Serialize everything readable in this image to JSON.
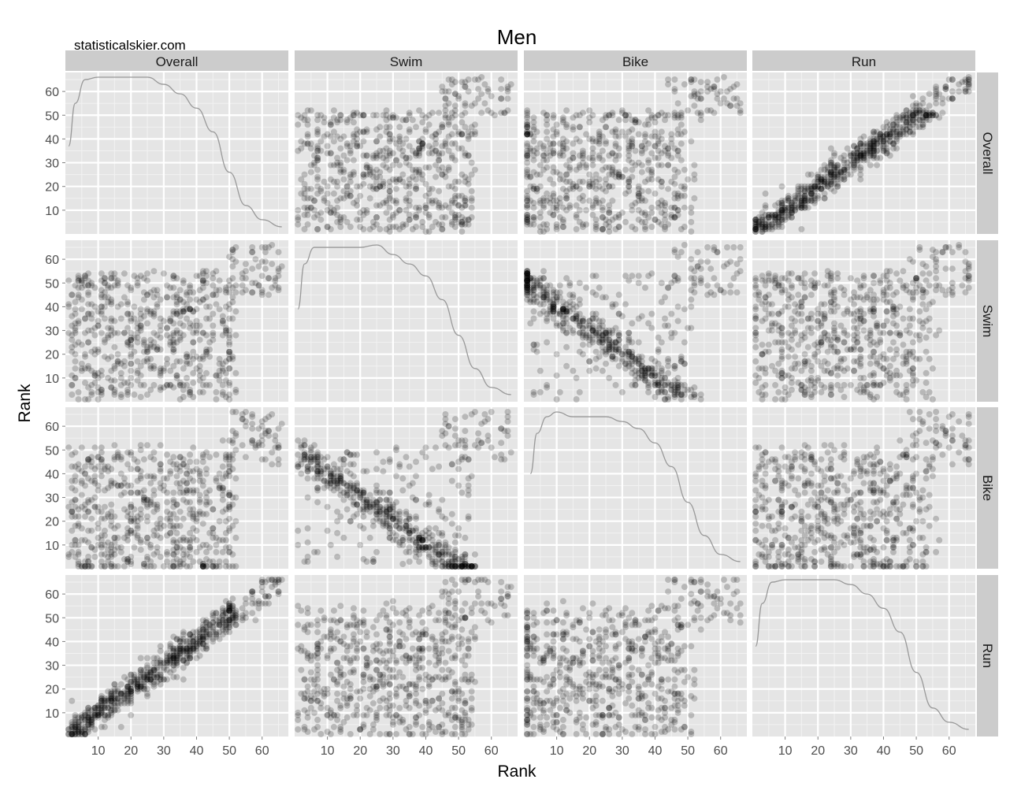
{
  "title": "Men",
  "watermark": "statisticalskier.com",
  "chart_data": {
    "type": "scatter",
    "layout": "scatterplot-matrix",
    "variables": [
      "Overall",
      "Swim",
      "Bike",
      "Run"
    ],
    "xlabel": "Rank",
    "ylabel": "Rank",
    "xlim": [
      0,
      68
    ],
    "ylim": [
      0,
      68
    ],
    "x_ticks": [
      10,
      20,
      30,
      40,
      50,
      60
    ],
    "y_ticks": [
      10,
      20,
      30,
      40,
      50,
      60
    ],
    "n_points": 650,
    "point_alpha": 0.2,
    "grid": true,
    "diagonal": "density",
    "pair_patterns": {
      "Overall|Swim": "weak positive, ranks diverge for mid-pack; tight diagonal tail above rank 50",
      "Overall|Bike": "weak positive with diagonal band and tail above rank 45",
      "Overall|Run": "strong positive linear, points tightly along diagonal",
      "Swim|Bike": "strong negative band from (2,48) to (52,2), plus positive tail above rank 45",
      "Swim|Run": "weak positive scatter",
      "Bike|Run": "weak positive scatter"
    },
    "density_curves": {
      "Overall": {
        "x": [
          1,
          3,
          6,
          10,
          20,
          25,
          30,
          35,
          40,
          45,
          50,
          55,
          60,
          66
        ],
        "y": [
          37,
          55,
          65,
          66,
          66,
          66,
          63,
          59,
          53,
          43,
          26,
          12,
          6,
          3
        ]
      },
      "Swim": {
        "x": [
          1,
          3,
          6,
          10,
          15,
          20,
          25,
          30,
          35,
          40,
          45,
          50,
          55,
          60,
          66
        ],
        "y": [
          39,
          58,
          65,
          65,
          65,
          65,
          66,
          62,
          58,
          53,
          43,
          28,
          14,
          6,
          3
        ]
      },
      "Bike": {
        "x": [
          2,
          4,
          7,
          10,
          15,
          20,
          25,
          30,
          35,
          40,
          45,
          50,
          55,
          60,
          66
        ],
        "y": [
          40,
          57,
          64,
          66,
          64,
          64,
          64,
          62,
          59,
          53,
          43,
          28,
          14,
          6,
          3
        ]
      },
      "Run": {
        "x": [
          1,
          3,
          6,
          10,
          20,
          25,
          30,
          35,
          40,
          45,
          50,
          55,
          60,
          66
        ],
        "y": [
          38,
          56,
          65,
          66,
          66,
          66,
          64,
          60,
          54,
          44,
          27,
          12,
          6,
          3
        ]
      }
    }
  }
}
